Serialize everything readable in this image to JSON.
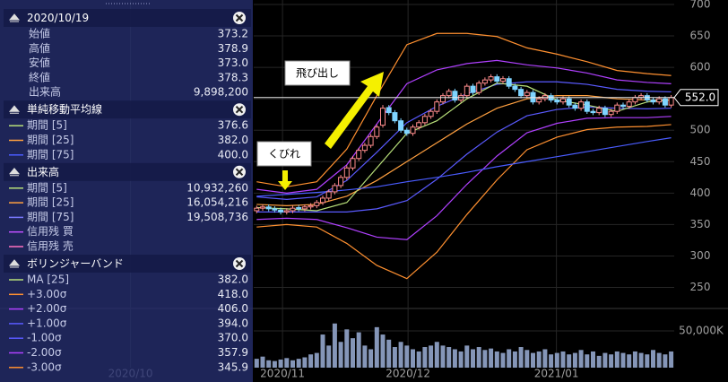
{
  "chart_data": {
    "type": "candlestick",
    "up_color": "#ff8c8c",
    "down_color": "#7fd4ff",
    "grid": true,
    "open": [
      372,
      376,
      378,
      375,
      373,
      370,
      372,
      377,
      375,
      378,
      380,
      385,
      392,
      402,
      412,
      425,
      440,
      455,
      468,
      476,
      490,
      508,
      536,
      528,
      515,
      500,
      495,
      505,
      512,
      522,
      530,
      545,
      555,
      562,
      548,
      555,
      570,
      560,
      575,
      580,
      585,
      578,
      582,
      570,
      565,
      555,
      560,
      545,
      550,
      555,
      548,
      545,
      550,
      540,
      535,
      545,
      530,
      528,
      535,
      525,
      530,
      540,
      538,
      545,
      552,
      555,
      548,
      545,
      550,
      540
    ],
    "high": [
      380,
      382,
      382,
      379,
      377,
      376,
      380,
      381,
      382,
      384,
      389,
      396,
      406,
      416,
      429,
      444,
      459,
      472,
      480,
      494,
      509,
      540,
      540,
      532,
      519,
      504,
      509,
      516,
      526,
      534,
      549,
      559,
      566,
      566,
      559,
      574,
      574,
      579,
      584,
      589,
      589,
      586,
      586,
      574,
      569,
      564,
      564,
      554,
      559,
      559,
      552,
      554,
      554,
      544,
      549,
      549,
      534,
      539,
      539,
      534,
      544,
      544,
      549,
      556,
      559,
      559,
      552,
      554,
      554,
      556
    ],
    "low": [
      368,
      372,
      371,
      369,
      366,
      366,
      368,
      371,
      371,
      374,
      376,
      381,
      388,
      398,
      408,
      421,
      436,
      451,
      464,
      472,
      486,
      504,
      524,
      511,
      496,
      491,
      491,
      501,
      508,
      518,
      526,
      541,
      551,
      544,
      544,
      551,
      556,
      556,
      571,
      576,
      574,
      574,
      566,
      561,
      551,
      551,
      541,
      541,
      546,
      544,
      541,
      541,
      536,
      531,
      531,
      526,
      524,
      524,
      521,
      521,
      526,
      534,
      534,
      541,
      548,
      544,
      541,
      541,
      536,
      536
    ],
    "close": [
      376,
      378,
      375,
      373,
      370,
      372,
      376,
      375,
      378,
      380,
      385,
      392,
      402,
      412,
      425,
      440,
      455,
      468,
      476,
      490,
      505,
      535,
      528,
      515,
      500,
      495,
      505,
      512,
      522,
      530,
      545,
      555,
      562,
      548,
      555,
      570,
      560,
      575,
      580,
      585,
      578,
      582,
      570,
      565,
      555,
      560,
      545,
      550,
      555,
      548,
      545,
      550,
      540,
      535,
      545,
      530,
      528,
      535,
      525,
      530,
      540,
      538,
      545,
      552,
      555,
      548,
      545,
      550,
      540,
      552
    ],
    "volume": [
      12000,
      15000,
      10000,
      9000,
      11000,
      13000,
      10000,
      12000,
      14000,
      18000,
      20000,
      45000,
      30000,
      60000,
      35000,
      52000,
      40000,
      48000,
      30000,
      25000,
      55000,
      45000,
      38000,
      28000,
      35000,
      30000,
      25000,
      22000,
      28000,
      30000,
      35000,
      30000,
      28000,
      25000,
      22000,
      30000,
      25000,
      28000,
      24000,
      26000,
      22000,
      20000,
      25000,
      22000,
      28000,
      24000,
      20000,
      22000,
      25000,
      18000,
      20000,
      22000,
      18000,
      20000,
      24000,
      18000,
      22000,
      16000,
      20000,
      18000,
      22000,
      20000,
      18000,
      22000,
      20000,
      18000,
      24000,
      20000,
      18000,
      22000
    ],
    "volume_color": "#8596b8",
    "lines": [
      {
        "color": "#ff9030",
        "x": [
          0,
          5,
          10,
          15,
          20,
          25,
          30,
          35,
          40,
          45,
          50,
          55,
          60,
          65,
          69
        ],
        "values": [
          418,
          410,
          418,
          470,
          555,
          636,
          654,
          654,
          649,
          631,
          621,
          609,
          595,
          590,
          587
        ]
      },
      {
        "color": "#b040ff",
        "x": [
          0,
          5,
          10,
          15,
          20,
          25,
          30,
          35,
          40,
          45,
          50,
          55,
          60,
          65,
          69
        ],
        "values": [
          406,
          400,
          406,
          445,
          510,
          574,
          596,
          606,
          611,
          604,
          599,
          591,
          580,
          576,
          574
        ]
      },
      {
        "color": "#5a5aff",
        "x": [
          0,
          5,
          10,
          15,
          20,
          25,
          30,
          35,
          40,
          45,
          50,
          55,
          60,
          65,
          69
        ],
        "values": [
          394,
          390,
          394,
          420,
          465,
          512,
          538,
          558,
          573,
          577,
          577,
          573,
          565,
          562,
          561
        ]
      },
      {
        "color": "#ffa040",
        "x": [
          0,
          5,
          10,
          15,
          20,
          25,
          30,
          35,
          40,
          45,
          50,
          55,
          60,
          65,
          69
        ],
        "values": [
          382,
          380,
          382,
          395,
          420,
          450,
          480,
          510,
          535,
          550,
          555,
          555,
          550,
          548,
          548
        ]
      },
      {
        "color": "#5a5aff",
        "x": [
          0,
          5,
          10,
          15,
          20,
          25,
          30,
          35,
          40,
          45,
          50,
          55,
          60,
          65,
          69
        ],
        "values": [
          370,
          370,
          370,
          370,
          375,
          388,
          422,
          462,
          497,
          523,
          533,
          537,
          535,
          534,
          535
        ]
      },
      {
        "color": "#b040ff",
        "x": [
          0,
          5,
          10,
          15,
          20,
          25,
          30,
          35,
          40,
          45,
          50,
          55,
          60,
          65,
          69
        ],
        "values": [
          358,
          360,
          358,
          345,
          330,
          326,
          364,
          414,
          459,
          496,
          511,
          519,
          520,
          520,
          522
        ]
      },
      {
        "color": "#ff9030",
        "x": [
          0,
          5,
          10,
          15,
          20,
          25,
          30,
          35,
          40,
          45,
          50,
          55,
          60,
          65,
          69
        ],
        "values": [
          346,
          350,
          346,
          320,
          285,
          264,
          306,
          366,
          421,
          469,
          489,
          501,
          505,
          506,
          509
        ]
      },
      {
        "color": "#b8e07a",
        "x": [
          0,
          5,
          10,
          15,
          20,
          25,
          30,
          35,
          40,
          45,
          50,
          55,
          60,
          65,
          69
        ],
        "values": [
          377,
          375,
          372,
          385,
          440,
          495,
          515,
          550,
          575,
          570,
          548,
          540,
          530,
          545,
          548
        ]
      },
      {
        "color": "#4a5cff",
        "x": [
          0,
          5,
          10,
          15,
          20,
          25,
          30,
          35,
          40,
          45,
          50,
          55,
          60,
          65,
          69
        ],
        "values": [
          395,
          398,
          401,
          405,
          410,
          418,
          425,
          433,
          442,
          450,
          458,
          466,
          474,
          482,
          488
        ]
      }
    ],
    "ylim": [
      250,
      700
    ],
    "yticks": [
      250,
      300,
      350,
      400,
      450,
      500,
      550,
      600,
      650,
      700
    ],
    "volume_ylim": [
      0,
      67000
    ],
    "volume_yticks": [
      {
        "value": 50000,
        "label": "50,000K"
      }
    ],
    "xticks": [
      {
        "value": -21,
        "label": "2020/10"
      },
      {
        "value": 4.3,
        "label": "2020/11"
      },
      {
        "value": 25.2,
        "label": "2020/12"
      },
      {
        "value": 49.9,
        "label": "2021/01"
      }
    ],
    "last_price": {
      "value": 552,
      "label": "552.0"
    },
    "annotations": [
      {
        "text": "飛び出し"
      },
      {
        "text": "くびれ"
      }
    ]
  },
  "panel": {
    "sections": [
      {
        "title": "2020/10/19",
        "rows": [
          {
            "label": "始値",
            "value": "373.2"
          },
          {
            "label": "高値",
            "value": "378.9"
          },
          {
            "label": "安値",
            "value": "373.0"
          },
          {
            "label": "終値",
            "value": "378.3"
          },
          {
            "label": "出来高",
            "value": "9,898,200"
          }
        ]
      },
      {
        "title": "単純移動平均線",
        "rows": [
          {
            "label": "期間 [5]",
            "value": "376.6",
            "color": "#b8e07a"
          },
          {
            "label": "期間 [25]",
            "value": "382.0",
            "color": "#ffa040"
          },
          {
            "label": "期間 [75]",
            "value": "400.0",
            "color": "#4a5cff"
          }
        ]
      },
      {
        "title": "出来高",
        "rows": [
          {
            "label": "期間 [5]",
            "value": "10,932,260",
            "color": "#b8e07a"
          },
          {
            "label": "期間 [25]",
            "value": "16,054,216",
            "color": "#ffa040"
          },
          {
            "label": "期間 [75]",
            "value": "19,508,736",
            "color": "#7a7aff"
          },
          {
            "label": "信用残 買",
            "color": "#c050ff"
          },
          {
            "label": "信用残 売",
            "color": "#ff70c0"
          }
        ]
      },
      {
        "title": "ボリンジャーバンド",
        "rows": [
          {
            "label": "MA [25]",
            "value": "382.0",
            "color": "#b8e07a"
          },
          {
            "label": "+3.00σ",
            "value": "418.0",
            "color": "#ff9030"
          },
          {
            "label": "+2.00σ",
            "value": "406.0",
            "color": "#b040ff"
          },
          {
            "label": "+1.00σ",
            "value": "394.0",
            "color": "#5a5aff"
          },
          {
            "label": "-1.00σ",
            "value": "370.0",
            "color": "#5a5aff"
          },
          {
            "label": "-2.00σ",
            "value": "357.9",
            "color": "#b040ff"
          },
          {
            "label": "-3.00σ",
            "value": "345.9",
            "color": "#ff9030"
          }
        ]
      }
    ]
  }
}
